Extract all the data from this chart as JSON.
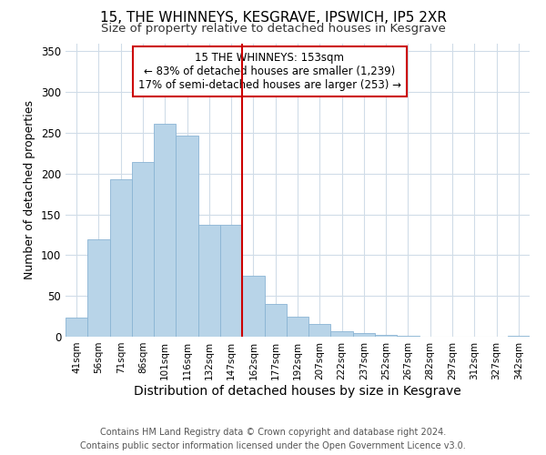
{
  "title": "15, THE WHINNEYS, KESGRAVE, IPSWICH, IP5 2XR",
  "subtitle": "Size of property relative to detached houses in Kesgrave",
  "xlabel": "Distribution of detached houses by size in Kesgrave",
  "ylabel": "Number of detached properties",
  "bar_labels": [
    "41sqm",
    "56sqm",
    "71sqm",
    "86sqm",
    "101sqm",
    "116sqm",
    "132sqm",
    "147sqm",
    "162sqm",
    "177sqm",
    "192sqm",
    "207sqm",
    "222sqm",
    "237sqm",
    "252sqm",
    "267sqm",
    "282sqm",
    "297sqm",
    "312sqm",
    "327sqm",
    "342sqm"
  ],
  "bar_heights": [
    24,
    120,
    193,
    214,
    261,
    247,
    137,
    137,
    75,
    40,
    25,
    16,
    7,
    5,
    2,
    1,
    0,
    0,
    0,
    0,
    1
  ],
  "bar_color": "#b8d4e8",
  "bar_edge_color": "#8ab4d4",
  "vline_color": "#cc0000",
  "annotation_title": "15 THE WHINNEYS: 153sqm",
  "annotation_line1": "← 83% of detached houses are smaller (1,239)",
  "annotation_line2": "17% of semi-detached houses are larger (253) →",
  "ylim": [
    0,
    360
  ],
  "yticks": [
    0,
    50,
    100,
    150,
    200,
    250,
    300,
    350
  ],
  "footer_line1": "Contains HM Land Registry data © Crown copyright and database right 2024.",
  "footer_line2": "Contains public sector information licensed under the Open Government Licence v3.0.",
  "bg_color": "#ffffff",
  "grid_color": "#d0dce8",
  "title_fontsize": 11,
  "subtitle_fontsize": 9.5,
  "xlabel_fontsize": 10,
  "ylabel_fontsize": 9,
  "tick_fontsize": 7.5,
  "footer_fontsize": 7,
  "annotation_fontsize": 8.5
}
